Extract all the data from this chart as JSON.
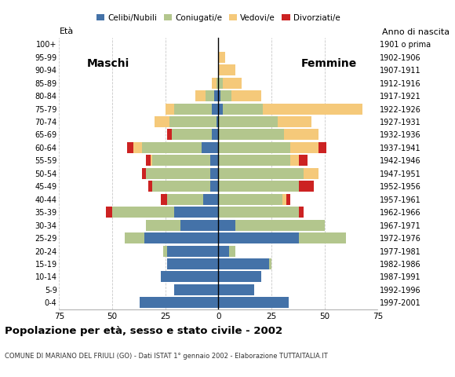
{
  "age_groups": [
    "0-4",
    "5-9",
    "10-14",
    "15-19",
    "20-24",
    "25-29",
    "30-34",
    "35-39",
    "40-44",
    "45-49",
    "50-54",
    "55-59",
    "60-64",
    "65-69",
    "70-74",
    "75-79",
    "80-84",
    "85-89",
    "90-94",
    "95-99",
    "100+"
  ],
  "birth_years": [
    "1997-2001",
    "1992-1996",
    "1987-1991",
    "1982-1986",
    "1977-1981",
    "1972-1976",
    "1967-1971",
    "1962-1966",
    "1957-1961",
    "1952-1956",
    "1947-1951",
    "1942-1946",
    "1937-1941",
    "1932-1936",
    "1927-1931",
    "1922-1926",
    "1917-1921",
    "1912-1916",
    "1907-1911",
    "1902-1906",
    "1901 o prima"
  ],
  "colors": {
    "celibe": "#4472a8",
    "coniugato": "#b3c68d",
    "vedovo": "#f5c97a",
    "divorziato": "#cc2222"
  },
  "males": {
    "celibe": [
      37,
      21,
      27,
      24,
      24,
      35,
      18,
      21,
      7,
      4,
      4,
      4,
      8,
      3,
      1,
      3,
      2,
      0,
      0,
      0,
      0
    ],
    "coniugato": [
      0,
      0,
      0,
      0,
      2,
      9,
      16,
      29,
      17,
      27,
      30,
      27,
      28,
      19,
      22,
      18,
      4,
      1,
      0,
      0,
      0
    ],
    "vedovo": [
      0,
      0,
      0,
      0,
      0,
      0,
      0,
      0,
      0,
      0,
      0,
      1,
      4,
      0,
      7,
      4,
      5,
      2,
      0,
      0,
      0
    ],
    "divorziato": [
      0,
      0,
      0,
      0,
      0,
      0,
      0,
      3,
      3,
      2,
      2,
      2,
      3,
      2,
      0,
      0,
      0,
      0,
      0,
      0,
      0
    ]
  },
  "females": {
    "celibe": [
      33,
      17,
      20,
      24,
      5,
      38,
      8,
      0,
      0,
      0,
      0,
      0,
      0,
      0,
      0,
      2,
      1,
      0,
      0,
      0,
      0
    ],
    "coniugato": [
      0,
      0,
      0,
      1,
      3,
      22,
      42,
      38,
      30,
      38,
      40,
      34,
      34,
      31,
      28,
      19,
      5,
      2,
      0,
      0,
      0
    ],
    "vedovo": [
      0,
      0,
      0,
      0,
      0,
      0,
      0,
      0,
      2,
      0,
      7,
      4,
      13,
      16,
      16,
      47,
      14,
      9,
      8,
      3,
      0
    ],
    "divorziato": [
      0,
      0,
      0,
      0,
      0,
      0,
      0,
      2,
      2,
      7,
      0,
      4,
      4,
      0,
      0,
      0,
      0,
      0,
      0,
      0,
      0
    ]
  },
  "title": "Popolazione per età, sesso e stato civile - 2002",
  "subtitle": "COMUNE DI MARIANO DEL FRIULI (GO) - Dati ISTAT 1° gennaio 2002 - Elaborazione TUTTAITALIA.IT",
  "xlabel_left": "Maschi",
  "xlabel_right": "Femmine",
  "ylabel_left": "Età",
  "ylabel_right": "Anno di nascita",
  "xlim": 75,
  "background_color": "#ffffff",
  "grid_color": "#bbbbbb",
  "bar_height": 0.85
}
